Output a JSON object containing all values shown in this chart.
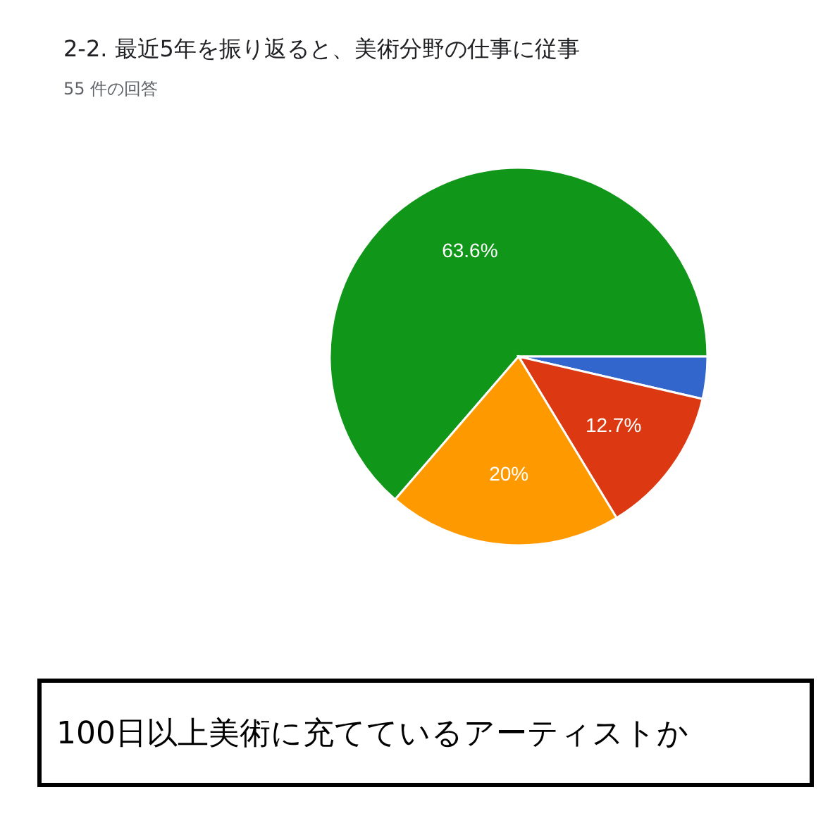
{
  "chart_data": {
    "type": "pie",
    "title": "2-2. 最近5年を振り返ると、美術分野の仕事に従事",
    "subtitle": "55 件の回答",
    "categories": [
      null,
      null,
      null,
      null
    ],
    "values": [
      63.6,
      3.6,
      12.7,
      20
    ],
    "colors": [
      "#109618",
      "#3366cc",
      "#dc3912",
      "#ff9900"
    ],
    "value_labels": [
      "63.6%",
      null,
      "12.7%",
      "20%"
    ],
    "annotations": [
      "100日以上美術に充てているアーティストか"
    ]
  }
}
